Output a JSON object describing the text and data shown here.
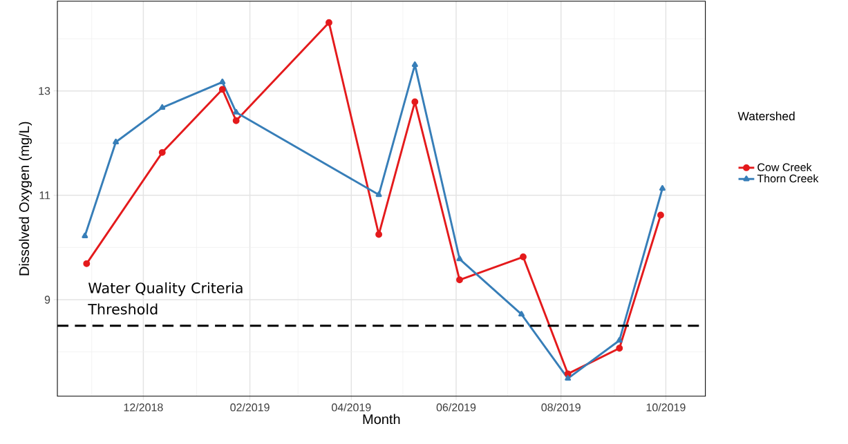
{
  "chart_data": {
    "type": "line",
    "xlabel": "Month",
    "ylabel": "Dissolved Oxygen (mg/L)",
    "legend_title": "Watershed",
    "legend": "right",
    "grid": true,
    "xlim": [
      "2018-10-12",
      "2019-10-24"
    ],
    "ylim": [
      7.15,
      14.72
    ],
    "xticks": [
      {
        "value": "2018-11-01",
        "label": null
      },
      {
        "value": "2018-12-01",
        "label": "12/2018"
      },
      {
        "value": "2019-01-01",
        "label": null
      },
      {
        "value": "2019-02-01",
        "label": "02/2019"
      },
      {
        "value": "2019-03-01",
        "label": null
      },
      {
        "value": "2019-04-01",
        "label": "04/2019"
      },
      {
        "value": "2019-05-01",
        "label": null
      },
      {
        "value": "2019-06-01",
        "label": "06/2019"
      },
      {
        "value": "2019-07-01",
        "label": null
      },
      {
        "value": "2019-08-01",
        "label": "08/2019"
      },
      {
        "value": "2019-09-01",
        "label": null
      },
      {
        "value": "2019-10-01",
        "label": "10/2019"
      }
    ],
    "yticks": [
      {
        "value": 8,
        "label": null
      },
      9,
      {
        "value": 10,
        "label": null
      },
      11,
      {
        "value": 12,
        "label": null
      },
      13,
      {
        "value": 14,
        "label": null
      }
    ],
    "ref_lines": [
      {
        "axis": "y",
        "value": 8.5,
        "label": "Water Quality Criteria Threshold",
        "color": "#000000",
        "line_style": "dashed"
      }
    ],
    "series": [
      {
        "name": "Cow Creek",
        "color": "#e41a1c",
        "marker": "circle",
        "x": [
          "2018-10-29",
          "2018-12-12",
          "2019-01-16",
          "2019-01-24",
          "2019-03-19",
          "2019-04-17",
          "2019-05-08",
          "2019-06-03",
          "2019-07-10",
          "2019-08-05",
          "2019-09-04",
          "2019-09-28"
        ],
        "values": [
          9.69,
          11.82,
          13.03,
          12.43,
          14.31,
          10.25,
          12.79,
          9.38,
          9.82,
          7.58,
          8.07,
          10.62
        ]
      },
      {
        "name": "Thorn Creek",
        "color": "#377eb8",
        "marker": "triangle",
        "x": [
          "2018-10-28",
          "2018-11-15",
          "2018-12-12",
          "2019-01-16",
          "2019-01-24",
          "2019-04-17",
          "2019-05-08",
          "2019-06-03",
          "2019-07-09",
          "2019-08-05",
          "2019-09-04",
          "2019-09-29"
        ],
        "values": [
          10.22,
          12.02,
          12.68,
          13.17,
          12.59,
          11.01,
          13.5,
          9.78,
          8.72,
          7.49,
          8.22,
          11.13
        ]
      }
    ]
  }
}
